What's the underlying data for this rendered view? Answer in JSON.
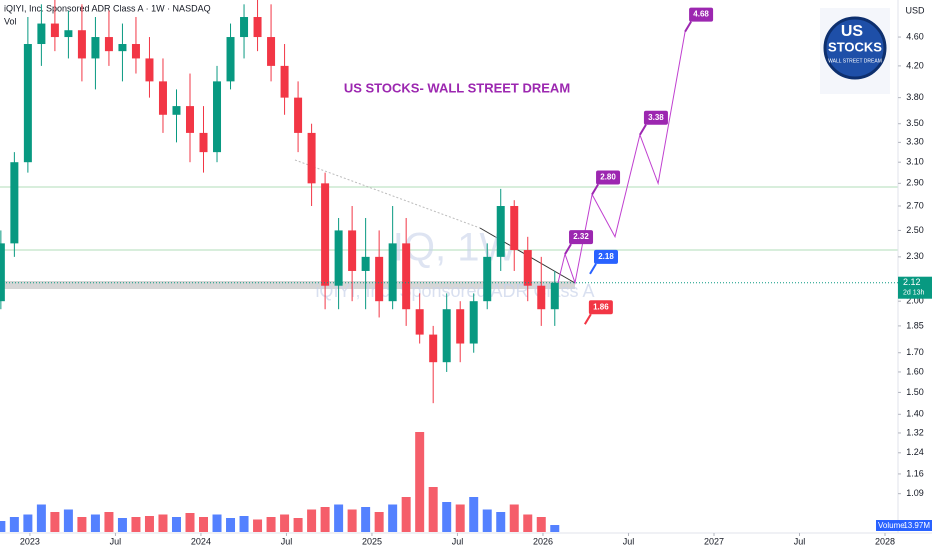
{
  "chart_data": {
    "type": "candlestick",
    "symbol": "iQIYI, Inc. Sponsored ADR Class A · 1W · NASDAQ",
    "volume_title": "Vol",
    "title": "US STOCKS- WALL STREET DREAM",
    "watermark": "IQ, 1W",
    "watermark_subtitle": "iQIYI, Inc. Sponsored ADR Class A",
    "currency": "USD",
    "log_scale": true,
    "up_color": "#089981",
    "down_color": "#f23645",
    "volume_up_color": "#2962ff",
    "volume_down_color": "#f23645",
    "x": [
      2022.83,
      2022.909,
      2022.988,
      2023.067,
      2023.146,
      2023.225,
      2023.304,
      2023.383,
      2023.462,
      2023.541,
      2023.62,
      2023.699,
      2023.778,
      2023.857,
      2023.936,
      2024.015,
      2024.094,
      2024.173,
      2024.252,
      2024.331,
      2024.41,
      2024.489,
      2024.568,
      2024.647,
      2024.726,
      2024.805,
      2024.884,
      2024.963,
      2025.042,
      2025.121,
      2025.2,
      2025.279,
      2025.358,
      2025.437,
      2025.516,
      2025.595,
      2025.674,
      2025.753,
      2025.832,
      2025.911,
      2025.99,
      2026.069
    ],
    "open": [
      2.0,
      2.4,
      3.1,
      4.5,
      4.8,
      4.6,
      4.7,
      4.3,
      4.6,
      4.4,
      4.5,
      4.3,
      4.0,
      3.6,
      3.7,
      3.4,
      3.2,
      4.0,
      4.6,
      4.9,
      4.6,
      4.2,
      3.8,
      3.4,
      2.9,
      2.1,
      2.5,
      2.2,
      2.3,
      2.0,
      2.4,
      1.95,
      1.8,
      1.65,
      1.95,
      1.75,
      2.0,
      2.3,
      2.7,
      2.35,
      2.1,
      1.95
    ],
    "high": [
      2.5,
      3.2,
      4.9,
      5.1,
      5.2,
      5.0,
      5.1,
      4.9,
      5.0,
      4.8,
      4.9,
      4.6,
      4.3,
      3.9,
      4.1,
      3.7,
      4.2,
      4.8,
      5.1,
      5.2,
      5.1,
      4.5,
      4.0,
      3.5,
      3.0,
      2.6,
      2.7,
      2.6,
      2.5,
      2.7,
      2.6,
      2.05,
      1.85,
      2.05,
      2.0,
      2.05,
      2.4,
      2.85,
      2.75,
      2.45,
      2.3,
      2.2
    ],
    "low": [
      1.95,
      2.3,
      3.0,
      4.2,
      4.4,
      4.3,
      4.0,
      3.9,
      4.2,
      4.0,
      4.1,
      3.8,
      3.4,
      3.3,
      3.1,
      3.0,
      3.1,
      3.9,
      4.3,
      4.4,
      4.0,
      3.6,
      3.2,
      2.7,
      1.95,
      1.95,
      2.0,
      1.95,
      1.9,
      1.95,
      1.85,
      1.75,
      1.45,
      1.6,
      1.65,
      1.7,
      1.95,
      2.2,
      2.2,
      2.0,
      1.85,
      1.85
    ],
    "close": [
      2.4,
      3.1,
      4.5,
      4.8,
      4.6,
      4.7,
      4.3,
      4.6,
      4.4,
      4.5,
      4.3,
      4.0,
      3.6,
      3.7,
      3.4,
      3.2,
      4.0,
      4.6,
      4.9,
      4.6,
      4.2,
      3.8,
      3.4,
      2.9,
      2.1,
      2.5,
      2.2,
      2.3,
      2.0,
      2.4,
      1.95,
      1.8,
      1.65,
      1.95,
      1.75,
      2.0,
      2.3,
      2.7,
      2.35,
      2.1,
      1.95,
      2.12
    ],
    "volume": [
      22,
      30,
      35,
      55,
      40,
      45,
      30,
      35,
      40,
      28,
      30,
      32,
      35,
      30,
      38,
      30,
      35,
      28,
      32,
      25,
      30,
      35,
      28,
      45,
      50,
      55,
      45,
      50,
      40,
      55,
      70,
      200,
      90,
      60,
      55,
      70,
      45,
      40,
      55,
      35,
      30,
      13.97
    ],
    "volume_legend": {
      "label": "Volume",
      "value": "13.97M"
    },
    "xlim": [
      2022.825,
      2028.076
    ],
    "xticks": [
      2023,
      {
        "value": 2023.5,
        "label": "Jul"
      },
      2024,
      {
        "value": 2024.5,
        "label": "Jul"
      },
      2025,
      {
        "value": 2025.5,
        "label": "Jul"
      },
      2026,
      {
        "value": 2026.5,
        "label": "Jul"
      },
      2027,
      {
        "value": 2027.5,
        "label": "Jul"
      },
      2028
    ],
    "ylim": [
      1.0,
      5.17
    ],
    "yticks": [
      {
        "value": 4.6,
        "label": "4.60"
      },
      {
        "value": 4.2,
        "label": "4.20"
      },
      {
        "value": 3.8,
        "label": "3.80"
      },
      {
        "value": 3.5,
        "label": "3.50"
      },
      {
        "value": 3.3,
        "label": "3.30"
      },
      {
        "value": 3.1,
        "label": "3.10"
      },
      {
        "value": 2.9,
        "label": "2.90"
      },
      {
        "value": 2.7,
        "label": "2.70"
      },
      {
        "value": 2.5,
        "label": "2.50"
      },
      {
        "value": 2.3,
        "label": "2.30"
      },
      {
        "value": 2.0,
        "label": "2.00"
      },
      1.85,
      {
        "value": 1.7,
        "label": "1.70"
      },
      {
        "value": 1.6,
        "label": "1.60"
      },
      {
        "value": 1.5,
        "label": "1.50"
      },
      {
        "value": 1.4,
        "label": "1.40"
      },
      1.32,
      1.24,
      1.16,
      1.09
    ],
    "last_price": {
      "value": 2.12,
      "label": "2.12",
      "color": "#089981"
    },
    "countdown": "2d 13h",
    "projection": {
      "color": "#c040d0",
      "x": [
        2026.088,
        2026.129,
        2026.187,
        2026.287,
        2026.421,
        2026.567,
        2026.673,
        2026.831
      ],
      "values": [
        2.12,
        2.32,
        2.12,
        2.8,
        2.45,
        3.38,
        2.9,
        4.68
      ]
    },
    "targets": [
      {
        "x": 2026.831,
        "value": 4.68,
        "label": "4.68",
        "color": "#9c27b0"
      },
      {
        "x": 2026.567,
        "value": 3.38,
        "label": "3.38",
        "color": "#9c27b0"
      },
      {
        "x": 2026.287,
        "value": 2.8,
        "label": "2.80",
        "color": "#9c27b0"
      },
      {
        "x": 2026.129,
        "value": 2.32,
        "label": "2.32",
        "color": "#9c27b0"
      },
      {
        "x": 2026.275,
        "value": 2.18,
        "label": "2.18",
        "color": "#2962ff"
      },
      {
        "x": 2026.245,
        "value": 1.86,
        "label": "1.86",
        "color": "#f23645"
      }
    ],
    "logo": {
      "line1": "US",
      "line2": "STOCKS",
      "line3": "WALL STREET DREAM"
    }
  }
}
